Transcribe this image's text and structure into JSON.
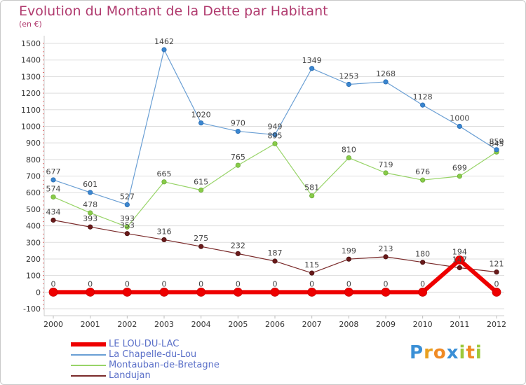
{
  "chart_data": {
    "type": "line",
    "title": "Evolution du Montant de la Dette par Habitant",
    "subtitle": "(en €)",
    "xlabel": "",
    "ylabel": "",
    "ylim": [
      -100,
      1500
    ],
    "yticks": [
      -100,
      0,
      100,
      200,
      300,
      400,
      500,
      600,
      700,
      800,
      900,
      1000,
      1100,
      1200,
      1300,
      1400,
      1500
    ],
    "categories": [
      "2000",
      "2001",
      "2002",
      "2003",
      "2004",
      "2005",
      "2006",
      "2007",
      "2008",
      "2009",
      "2010",
      "2011",
      "2012"
    ],
    "series": [
      {
        "name": "LE LOU-DU-LAC",
        "color": "#ee0000",
        "values": [
          0,
          0,
          0,
          0,
          0,
          0,
          0,
          0,
          0,
          0,
          0,
          194,
          0
        ]
      },
      {
        "name": "La Chapelle-du-Lou",
        "color": "#6a9fd4",
        "values": [
          677,
          601,
          527,
          1462,
          1020,
          970,
          949,
          1349,
          1253,
          1268,
          1128,
          1000,
          859
        ]
      },
      {
        "name": "Montauban-de-Bretagne",
        "color": "#98d468",
        "values": [
          574,
          478,
          393,
          665,
          615,
          765,
          895,
          581,
          810,
          719,
          676,
          699,
          845
        ]
      },
      {
        "name": "Landujan",
        "color": "#7a2a2a",
        "values": [
          434,
          393,
          353,
          316,
          275,
          232,
          187,
          115,
          199,
          213,
          180,
          147,
          121
        ]
      }
    ]
  },
  "legend": {
    "items": [
      {
        "label": "LE LOU-DU-LAC",
        "color": "#ee0000"
      },
      {
        "label": "La Chapelle-du-Lou",
        "color": "#6a9fd4"
      },
      {
        "label": "Montauban-de-Bretagne",
        "color": "#98d468"
      },
      {
        "label": "Landujan",
        "color": "#7a2a2a"
      }
    ]
  },
  "logo": {
    "letters": [
      "P",
      "r",
      "o",
      "x",
      "i",
      "t",
      "i"
    ]
  }
}
